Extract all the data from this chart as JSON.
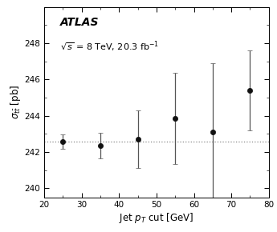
{
  "x": [
    25,
    35,
    45,
    55,
    65,
    75
  ],
  "y": [
    242.55,
    242.35,
    242.7,
    243.85,
    243.1,
    245.4
  ],
  "yerr_low": [
    0.4,
    0.7,
    1.6,
    2.5,
    3.8,
    2.2
  ],
  "yerr_high": [
    0.4,
    0.7,
    1.6,
    2.5,
    3.8,
    2.2
  ],
  "hline_y": 242.55,
  "xlim": [
    20,
    80
  ],
  "ylim": [
    239.5,
    250.0
  ],
  "xticks": [
    20,
    30,
    40,
    50,
    60,
    70,
    80
  ],
  "yticks": [
    240,
    242,
    244,
    246,
    248
  ],
  "xlabel": "Jet $p_T$ cut [GeV]",
  "ylabel": "$\\sigma_{t\\bar{t}}$ [pb]",
  "label_atlas": "ATLAS",
  "label_energy": "$\\sqrt{s}$ = 8 TeV, 20.3 fb$^{-1}$",
  "point_color": "#111111",
  "errorbar_color": "#555555",
  "hline_color": "#888888",
  "background_color": "#ffffff"
}
